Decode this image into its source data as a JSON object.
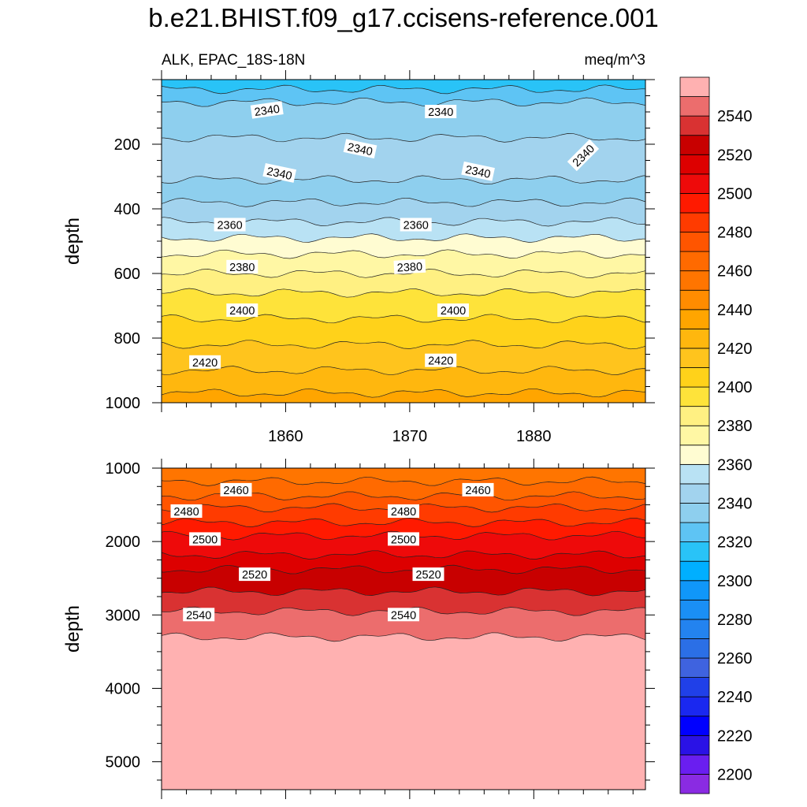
{
  "chart_data": {
    "type": "heatmap",
    "title": "b.e21.BHIST.f09_g17.ccisens-reference.001",
    "subtitle_left": "ALK, EPAC_18S-18N",
    "subtitle_right": "meq/m^3",
    "xlabel": "",
    "ylabel": "depth",
    "xlim": [
      1850,
      1889
    ],
    "x_ticks": [
      "1860",
      "1870",
      "1880"
    ],
    "panels": [
      {
        "name": "upper",
        "ylabel": "depth",
        "ylim": [
          0,
          1000
        ],
        "y_ticks": [
          "200",
          "400",
          "600",
          "800",
          "1000"
        ],
        "bands": [
          {
            "depth": 0,
            "value": 2310
          },
          {
            "depth": 30,
            "value": 2320
          },
          {
            "depth": 70,
            "value": 2330
          },
          {
            "depth": 180,
            "value": 2340
          },
          {
            "depth": 310,
            "value": 2330
          },
          {
            "depth": 380,
            "value": 2340
          },
          {
            "depth": 440,
            "value": 2350
          },
          {
            "depth": 490,
            "value": 2360
          },
          {
            "depth": 540,
            "value": 2370
          },
          {
            "depth": 600,
            "value": 2380
          },
          {
            "depth": 660,
            "value": 2390
          },
          {
            "depth": 740,
            "value": 2400
          },
          {
            "depth": 820,
            "value": 2410
          },
          {
            "depth": 900,
            "value": 2420
          },
          {
            "depth": 970,
            "value": 2430
          },
          {
            "depth": 1000,
            "value": 2430
          }
        ],
        "contour_labels": [
          {
            "text": "2340",
            "x": 1858.5,
            "depth": 95,
            "rotate": -8
          },
          {
            "text": "2340",
            "x": 1872.5,
            "depth": 100,
            "rotate": 0
          },
          {
            "text": "2340",
            "x": 1866.0,
            "depth": 215,
            "rotate": 12
          },
          {
            "text": "2340",
            "x": 1859.5,
            "depth": 290,
            "rotate": 12
          },
          {
            "text": "2340",
            "x": 1875.5,
            "depth": 285,
            "rotate": 12
          },
          {
            "text": "2340",
            "x": 1884.0,
            "depth": 235,
            "rotate": -45
          },
          {
            "text": "2360",
            "x": 1855.5,
            "depth": 450,
            "rotate": 0
          },
          {
            "text": "2360",
            "x": 1870.5,
            "depth": 450,
            "rotate": 0
          },
          {
            "text": "2380",
            "x": 1856.5,
            "depth": 580,
            "rotate": 0
          },
          {
            "text": "2380",
            "x": 1870.0,
            "depth": 580,
            "rotate": -3
          },
          {
            "text": "2400",
            "x": 1856.5,
            "depth": 715,
            "rotate": 0
          },
          {
            "text": "2400",
            "x": 1873.5,
            "depth": 715,
            "rotate": 0
          },
          {
            "text": "2420",
            "x": 1853.5,
            "depth": 875,
            "rotate": 0
          },
          {
            "text": "2420",
            "x": 1872.5,
            "depth": 870,
            "rotate": 0
          }
        ]
      },
      {
        "name": "lower",
        "ylabel": "depth",
        "ylim": [
          1000,
          5380
        ],
        "y_ticks": [
          "1000",
          "2000",
          "3000",
          "4000",
          "5000"
        ],
        "bands": [
          {
            "depth": 1000,
            "value": 2450
          },
          {
            "depth": 1180,
            "value": 2460
          },
          {
            "depth": 1380,
            "value": 2470
          },
          {
            "depth": 1540,
            "value": 2480
          },
          {
            "depth": 1740,
            "value": 2490
          },
          {
            "depth": 1920,
            "value": 2500
          },
          {
            "depth": 2180,
            "value": 2510
          },
          {
            "depth": 2380,
            "value": 2520
          },
          {
            "depth": 2680,
            "value": 2530
          },
          {
            "depth": 2950,
            "value": 2540
          },
          {
            "depth": 3300,
            "value": 2550
          },
          {
            "depth": 5380,
            "value": 2550
          }
        ],
        "contour_labels": [
          {
            "text": "2460",
            "x": 1856.0,
            "depth": 1300,
            "rotate": 0
          },
          {
            "text": "2460",
            "x": 1875.5,
            "depth": 1300,
            "rotate": 0
          },
          {
            "text": "2480",
            "x": 1852.0,
            "depth": 1590,
            "rotate": 0
          },
          {
            "text": "2480",
            "x": 1869.5,
            "depth": 1590,
            "rotate": 0
          },
          {
            "text": "2500",
            "x": 1853.5,
            "depth": 1970,
            "rotate": 0
          },
          {
            "text": "2500",
            "x": 1869.5,
            "depth": 1970,
            "rotate": 0
          },
          {
            "text": "2520",
            "x": 1857.5,
            "depth": 2450,
            "rotate": 0
          },
          {
            "text": "2520",
            "x": 1871.5,
            "depth": 2450,
            "rotate": 0
          },
          {
            "text": "2540",
            "x": 1853.0,
            "depth": 3000,
            "rotate": 0
          },
          {
            "text": "2540",
            "x": 1869.5,
            "depth": 3000,
            "rotate": 0
          }
        ]
      }
    ],
    "colorbar": {
      "levels": [
        2190,
        2200,
        2210,
        2220,
        2230,
        2240,
        2250,
        2260,
        2270,
        2280,
        2290,
        2300,
        2310,
        2320,
        2330,
        2340,
        2350,
        2360,
        2370,
        2380,
        2390,
        2400,
        2410,
        2420,
        2430,
        2440,
        2450,
        2460,
        2470,
        2480,
        2490,
        2500,
        2510,
        2520,
        2530,
        2540,
        2550
      ],
      "labels": [
        "2200",
        "2220",
        "2240",
        "2260",
        "2280",
        "2300",
        "2320",
        "2340",
        "2360",
        "2380",
        "2400",
        "2420",
        "2440",
        "2460",
        "2480",
        "2500",
        "2520",
        "2540"
      ],
      "colors": [
        "#8a2be2",
        "#6a1ef0",
        "#2a12e6",
        "#0000ff",
        "#1a28f0",
        "#2040e8",
        "#3f63df",
        "#2b6fe6",
        "#2383ef",
        "#1a8ff5",
        "#1097f9",
        "#00afff",
        "#29c3f7",
        "#5ec4f4",
        "#8ecfee",
        "#a2d3ee",
        "#b9e2f4",
        "#fffcd2",
        "#fff7a4",
        "#fff082",
        "#fee33a",
        "#ffd21a",
        "#ffc41d",
        "#ffb70e",
        "#ffa500",
        "#ff8c00",
        "#ff7500",
        "#ff6a00",
        "#ff5500",
        "#ff3b00",
        "#ff1a00",
        "#ee0a0a",
        "#dd0000",
        "#c80000",
        "#d93232",
        "#ec6d6d",
        "#ffb1b1"
      ]
    }
  }
}
